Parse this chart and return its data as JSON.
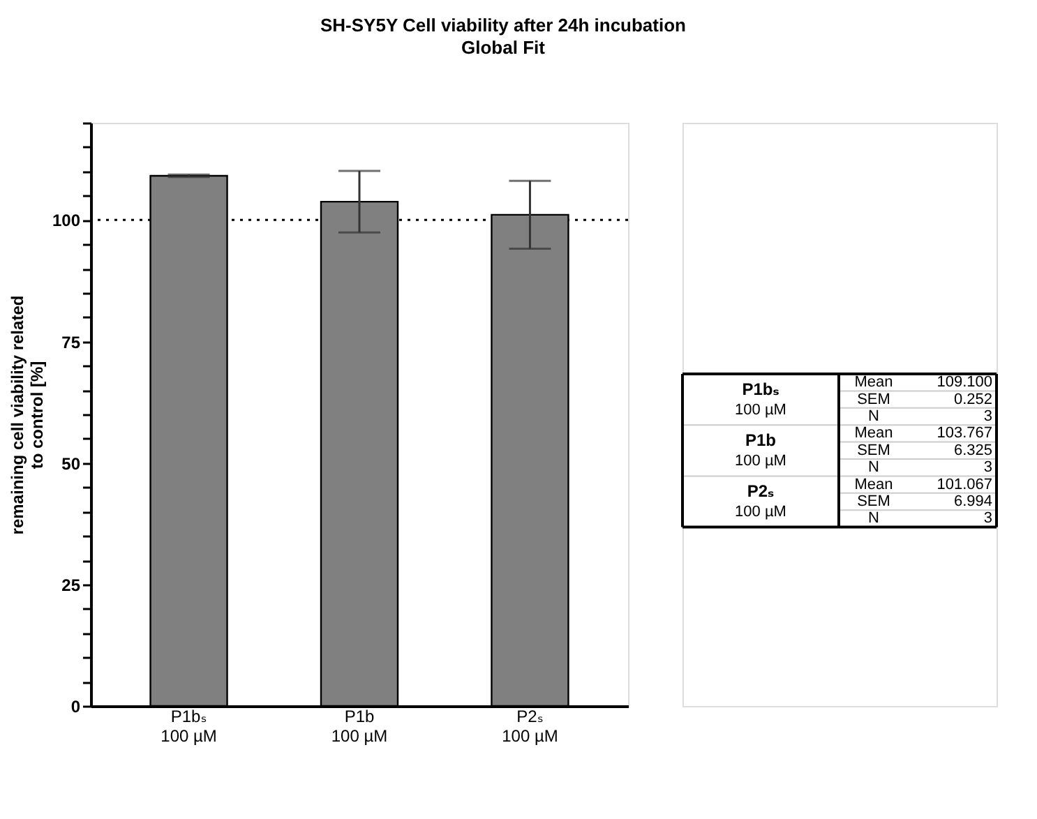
{
  "chart_data": [
    {
      "type": "bar",
      "title": "SH-SY5Y Cell viability after 24h incubation",
      "subtitle": "Global Fit",
      "ylabel": "remaining cell viability related\nto control [%]",
      "categories": [
        "P1bₛ\n100 µM",
        "P1b\n100 µM",
        "P2ₛ\n100 µM"
      ],
      "values": [
        109.1,
        103.767,
        101.067
      ],
      "errors": [
        0.252,
        6.325,
        6.994
      ],
      "color": "#808080",
      "ylim": [
        0,
        120
      ],
      "yticks": [
        0,
        {
          "value": 5,
          "label": null
        },
        {
          "value": 10,
          "label": null
        },
        {
          "value": 15,
          "label": null
        },
        {
          "value": 20,
          "label": null
        },
        25,
        {
          "value": 30,
          "label": null
        },
        {
          "value": 35,
          "label": null
        },
        {
          "value": 40,
          "label": null
        },
        {
          "value": 45,
          "label": null
        },
        50,
        {
          "value": 55,
          "label": null
        },
        {
          "value": 60,
          "label": null
        },
        {
          "value": 65,
          "label": null
        },
        {
          "value": 70,
          "label": null
        },
        75,
        {
          "value": 80,
          "label": null
        },
        {
          "value": 85,
          "label": null
        },
        {
          "value": 90,
          "label": null
        },
        {
          "value": 95,
          "label": null
        },
        100,
        {
          "value": 105,
          "label": null
        },
        {
          "value": 110,
          "label": null
        },
        {
          "value": 115,
          "label": null
        },
        {
          "value": 120,
          "label": null
        }
      ],
      "ref_lines": [
        {
          "axis": "y",
          "value": 100,
          "color": "#000000",
          "line_style": "dotted"
        }
      ],
      "grid": false
    },
    {
      "type": "other",
      "categories": [
        "P1bₛ\n100 µM",
        "P1b\n100 µM",
        "P2ₛ\n100 µM"
      ],
      "y_categories": [
        "Mean",
        "SEM",
        "N"
      ],
      "cell_labels": [
        [
          "109.100",
          "0.252",
          "3"
        ],
        [
          "103.767",
          "6.325",
          "3"
        ],
        [
          "101.067",
          "6.994",
          "3"
        ]
      ]
    }
  ]
}
